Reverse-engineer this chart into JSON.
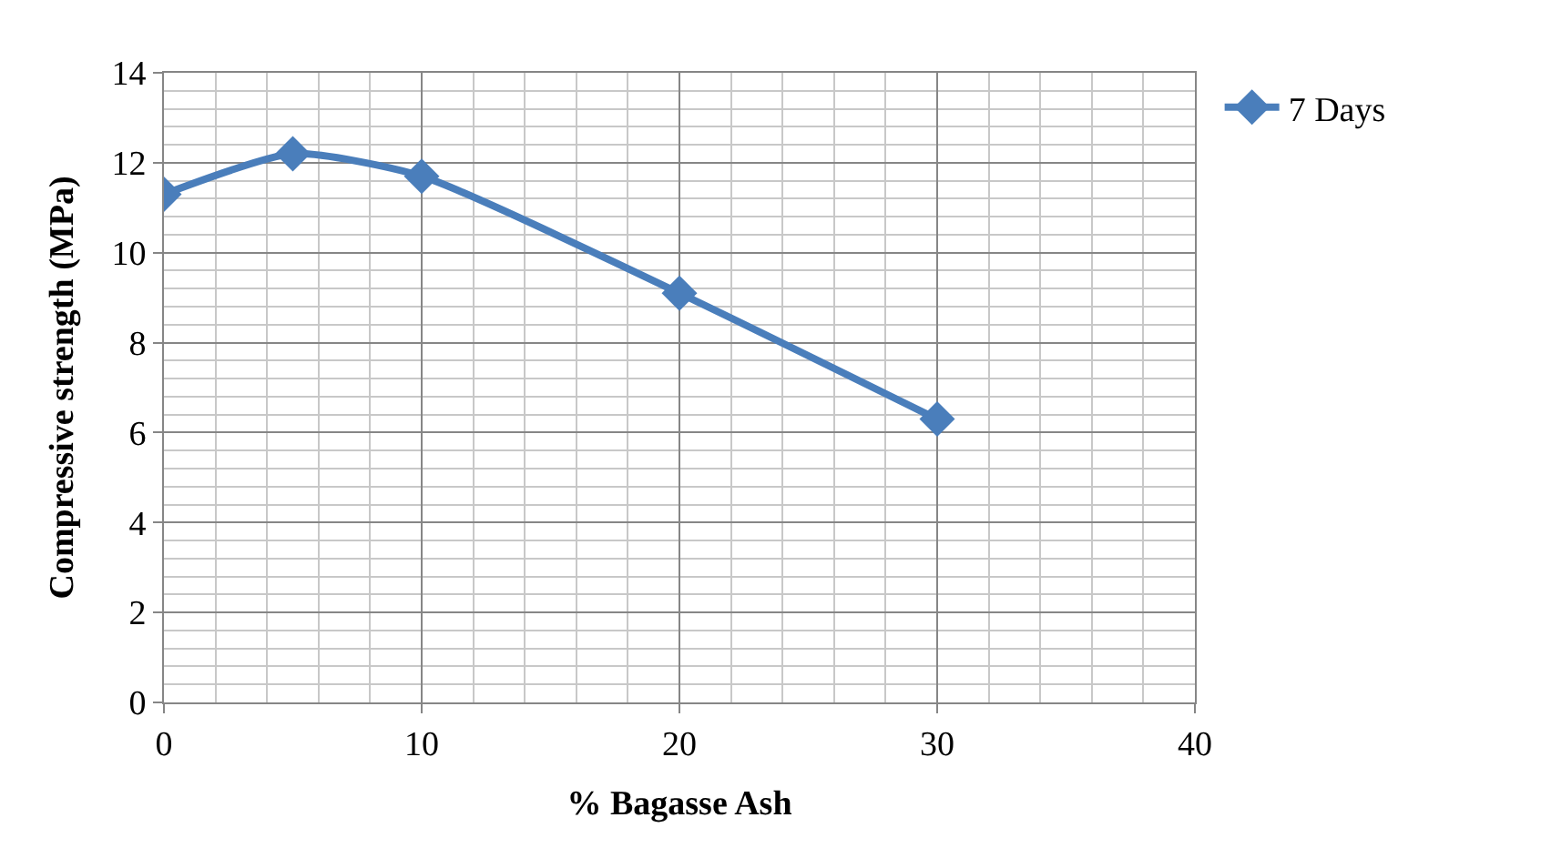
{
  "chart_data": {
    "type": "line",
    "xlabel": "% Bagasse Ash",
    "ylabel": "Compressive strength (MPa)",
    "x": [
      0,
      5,
      10,
      20,
      30
    ],
    "series": [
      {
        "name": "7 Days",
        "color": "#4a7ebb",
        "values": [
          11.3,
          12.2,
          11.7,
          9.1,
          6.3
        ]
      }
    ],
    "xlim": [
      0,
      40
    ],
    "xticks": [
      0,
      10,
      20,
      30,
      40
    ],
    "ylim": [
      0,
      14
    ],
    "yticks": [
      0,
      2,
      4,
      6,
      8,
      10,
      12,
      14
    ],
    "grid": true,
    "legend": "top right",
    "marker": "diamond",
    "line_style": "solid"
  }
}
